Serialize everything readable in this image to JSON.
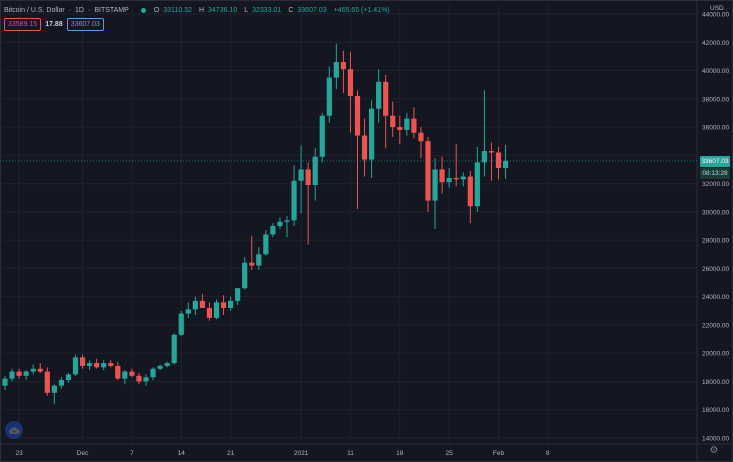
{
  "legend": {
    "symbol": "Bitcoin / U.S. Dollar",
    "interval": "1D",
    "exchange": "BITSTAMP",
    "open_label": "O",
    "open": "33110.32",
    "high_label": "H",
    "high": "34736.10",
    "low_label": "L",
    "low": "32333.01",
    "close_label": "C",
    "close": "33607.03",
    "change": "+465.65 (+1.41%)"
  },
  "quote": {
    "bid": "33589.15",
    "spread": "17.88",
    "ask": "33607.03"
  },
  "price_axis": {
    "currency": "USD",
    "ticks": [
      "44000.00",
      "42000.00",
      "40000.00",
      "38000.00",
      "36000.00",
      "34000.00",
      "32000.00",
      "30000.00",
      "28000.00",
      "26000.00",
      "24000.00",
      "22000.00",
      "20000.00",
      "18000.00",
      "16000.00",
      "14000.00"
    ]
  },
  "current_price_tag": "33607.03",
  "countdown": "08:13:28",
  "time_axis": {
    "ticks": [
      "23",
      "Dec",
      "7",
      "14",
      "21",
      "2021",
      "11",
      "18",
      "25",
      "Feb",
      "8"
    ]
  },
  "colors": {
    "up": "#26a69a",
    "down": "#ef5350",
    "background": "#131722",
    "grid": "#1e222d"
  },
  "icons": {
    "logo": "cloud-logo-icon",
    "settings": "gear-icon"
  },
  "chart_data": {
    "type": "candlestick",
    "ylim": [
      14000,
      44000
    ],
    "x_ticks": [
      "23",
      "Dec",
      "7",
      "14",
      "21",
      "2021",
      "11",
      "18",
      "25",
      "Feb",
      "8"
    ],
    "candles": [
      {
        "o": 17700,
        "h": 18400,
        "l": 17400,
        "c": 18200
      },
      {
        "o": 18200,
        "h": 18900,
        "l": 18000,
        "c": 18700
      },
      {
        "o": 18700,
        "h": 18900,
        "l": 18200,
        "c": 18400
      },
      {
        "o": 18400,
        "h": 18800,
        "l": 18100,
        "c": 18700
      },
      {
        "o": 18700,
        "h": 19200,
        "l": 18500,
        "c": 18900
      },
      {
        "o": 18900,
        "h": 19300,
        "l": 18600,
        "c": 18700
      },
      {
        "o": 18700,
        "h": 19000,
        "l": 17000,
        "c": 17200
      },
      {
        "o": 17200,
        "h": 17800,
        "l": 16400,
        "c": 17700
      },
      {
        "o": 17700,
        "h": 18300,
        "l": 17500,
        "c": 18100
      },
      {
        "o": 18100,
        "h": 18600,
        "l": 17900,
        "c": 18500
      },
      {
        "o": 18500,
        "h": 19900,
        "l": 18400,
        "c": 19700
      },
      {
        "o": 19700,
        "h": 19900,
        "l": 18900,
        "c": 19100
      },
      {
        "o": 19100,
        "h": 19500,
        "l": 18800,
        "c": 19300
      },
      {
        "o": 19300,
        "h": 19600,
        "l": 18900,
        "c": 19000
      },
      {
        "o": 19000,
        "h": 19500,
        "l": 18800,
        "c": 19300
      },
      {
        "o": 19300,
        "h": 19500,
        "l": 19000,
        "c": 19100
      },
      {
        "o": 19100,
        "h": 19400,
        "l": 18100,
        "c": 18200
      },
      {
        "o": 18200,
        "h": 18800,
        "l": 17800,
        "c": 18700
      },
      {
        "o": 18700,
        "h": 18900,
        "l": 18300,
        "c": 18400
      },
      {
        "o": 18400,
        "h": 18600,
        "l": 17800,
        "c": 18000
      },
      {
        "o": 18000,
        "h": 18500,
        "l": 17700,
        "c": 18300
      },
      {
        "o": 18300,
        "h": 19000,
        "l": 18100,
        "c": 18900
      },
      {
        "o": 18900,
        "h": 19200,
        "l": 18800,
        "c": 19100
      },
      {
        "o": 19100,
        "h": 19400,
        "l": 19000,
        "c": 19300
      },
      {
        "o": 19300,
        "h": 21400,
        "l": 19200,
        "c": 21300
      },
      {
        "o": 21300,
        "h": 23000,
        "l": 21200,
        "c": 22800
      },
      {
        "o": 22800,
        "h": 23600,
        "l": 22500,
        "c": 23100
      },
      {
        "o": 23100,
        "h": 24000,
        "l": 22700,
        "c": 23700
      },
      {
        "o": 23700,
        "h": 24200,
        "l": 23200,
        "c": 23200
      },
      {
        "o": 23200,
        "h": 23600,
        "l": 22300,
        "c": 22500
      },
      {
        "o": 22500,
        "h": 23800,
        "l": 22400,
        "c": 23600
      },
      {
        "o": 23600,
        "h": 24100,
        "l": 22700,
        "c": 23200
      },
      {
        "o": 23200,
        "h": 24000,
        "l": 23000,
        "c": 23700
      },
      {
        "o": 23700,
        "h": 24600,
        "l": 23400,
        "c": 24600
      },
      {
        "o": 24600,
        "h": 26800,
        "l": 24500,
        "c": 26400
      },
      {
        "o": 26400,
        "h": 28300,
        "l": 25900,
        "c": 26200
      },
      {
        "o": 26200,
        "h": 27500,
        "l": 25900,
        "c": 27000
      },
      {
        "o": 27000,
        "h": 28700,
        "l": 26900,
        "c": 28400
      },
      {
        "o": 28400,
        "h": 29200,
        "l": 28200,
        "c": 29000
      },
      {
        "o": 29000,
        "h": 29600,
        "l": 28800,
        "c": 29300
      },
      {
        "o": 29300,
        "h": 29700,
        "l": 28200,
        "c": 29400
      },
      {
        "o": 29400,
        "h": 33300,
        "l": 29000,
        "c": 32200
      },
      {
        "o": 32200,
        "h": 34700,
        "l": 29900,
        "c": 33000
      },
      {
        "o": 33000,
        "h": 33500,
        "l": 27700,
        "c": 31900
      },
      {
        "o": 31900,
        "h": 34500,
        "l": 30800,
        "c": 33900
      },
      {
        "o": 33900,
        "h": 37000,
        "l": 33500,
        "c": 36800
      },
      {
        "o": 36800,
        "h": 40300,
        "l": 36300,
        "c": 39500
      },
      {
        "o": 39500,
        "h": 41900,
        "l": 38700,
        "c": 40600
      },
      {
        "o": 40600,
        "h": 41400,
        "l": 38400,
        "c": 40100
      },
      {
        "o": 40100,
        "h": 41300,
        "l": 35600,
        "c": 38200
      },
      {
        "o": 38200,
        "h": 38600,
        "l": 30200,
        "c": 35400
      },
      {
        "o": 35400,
        "h": 36600,
        "l": 32500,
        "c": 33700
      },
      {
        "o": 33700,
        "h": 37900,
        "l": 32400,
        "c": 37300
      },
      {
        "o": 37300,
        "h": 40100,
        "l": 36300,
        "c": 39200
      },
      {
        "o": 39200,
        "h": 39700,
        "l": 34500,
        "c": 36800
      },
      {
        "o": 36800,
        "h": 37800,
        "l": 35300,
        "c": 36000
      },
      {
        "o": 36000,
        "h": 36800,
        "l": 34800,
        "c": 35800
      },
      {
        "o": 35800,
        "h": 37000,
        "l": 35400,
        "c": 36600
      },
      {
        "o": 36600,
        "h": 37400,
        "l": 35200,
        "c": 35600
      },
      {
        "o": 35600,
        "h": 36000,
        "l": 33800,
        "c": 35000
      },
      {
        "o": 35000,
        "h": 35300,
        "l": 30000,
        "c": 30800
      },
      {
        "o": 30800,
        "h": 33800,
        "l": 28800,
        "c": 33000
      },
      {
        "o": 33000,
        "h": 33900,
        "l": 31300,
        "c": 32100
      },
      {
        "o": 32100,
        "h": 33100,
        "l": 31700,
        "c": 32400
      },
      {
        "o": 32400,
        "h": 34800,
        "l": 31800,
        "c": 32300
      },
      {
        "o": 32300,
        "h": 32800,
        "l": 31800,
        "c": 32500
      },
      {
        "o": 32500,
        "h": 32900,
        "l": 29200,
        "c": 30400
      },
      {
        "o": 30400,
        "h": 34600,
        "l": 30000,
        "c": 33500
      },
      {
        "o": 33500,
        "h": 38600,
        "l": 32500,
        "c": 34300
      },
      {
        "o": 34300,
        "h": 34900,
        "l": 32200,
        "c": 34200
      },
      {
        "o": 34200,
        "h": 34600,
        "l": 32300,
        "c": 33100
      },
      {
        "o": 33100,
        "h": 34736,
        "l": 32333,
        "c": 33607
      }
    ]
  }
}
